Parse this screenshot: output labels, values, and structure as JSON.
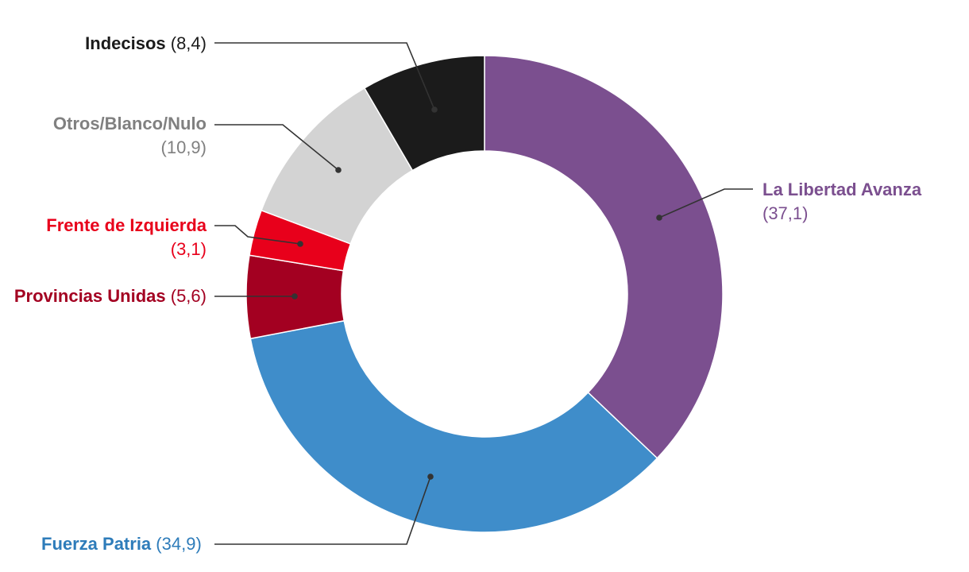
{
  "chart_data": {
    "type": "pie",
    "donut": true,
    "unit": "%",
    "slices": [
      {
        "label": "La Libertad Avanza",
        "value": 37.1,
        "value_text": "(37,1)",
        "color": "#7b4f8f"
      },
      {
        "label": "Fuerza Patria",
        "value": 34.9,
        "value_text": "(34,9)",
        "color": "#3f8dca"
      },
      {
        "label": "Provincias Unidas",
        "value": 5.6,
        "value_text": "(5,6)",
        "color": "#a30021"
      },
      {
        "label": "Frente de Izquierda",
        "value": 3.1,
        "value_text": "(3,1)",
        "color": "#e8001b"
      },
      {
        "label": "Otros/Blanco/Nulo",
        "value": 10.9,
        "value_text": "(10,9)",
        "color": "#d3d3d3"
      },
      {
        "label": "Indecisos",
        "value": 8.4,
        "value_text": "(8,4)",
        "color": "#1b1b1b"
      }
    ],
    "label_colors": {
      "La Libertad Avanza": "#7b4f8f",
      "Fuerza Patria": "#2e7cba",
      "Provincias Unidas": "#a30021",
      "Frente de Izquierda": "#e8001b",
      "Otros/Blanco/Nulo": "#808080",
      "Indecisos": "#1b1b1b"
    }
  }
}
